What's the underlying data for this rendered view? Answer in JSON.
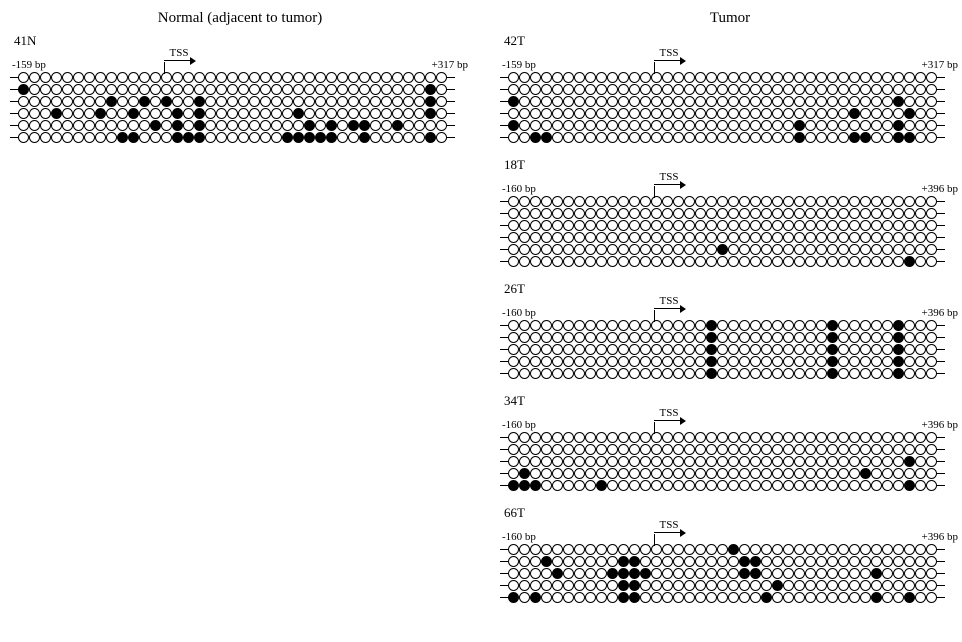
{
  "headers": {
    "left": "Normal (adjacent to tumor)",
    "right": "Tumor"
  },
  "circle_diameter": 11,
  "tail_width": 8,
  "panels": {
    "left": [
      {
        "label": "41N",
        "bp_left": "-159 bp",
        "bp_right": "+317 bp",
        "tss_col": 14,
        "cols": 39,
        "rows": 6,
        "filled": [
          [
            1,
            0
          ],
          [
            1,
            37
          ],
          [
            2,
            8
          ],
          [
            2,
            11
          ],
          [
            2,
            13
          ],
          [
            2,
            16
          ],
          [
            2,
            37
          ],
          [
            3,
            3
          ],
          [
            3,
            7
          ],
          [
            3,
            10
          ],
          [
            3,
            14
          ],
          [
            3,
            16
          ],
          [
            3,
            25
          ],
          [
            3,
            37
          ],
          [
            4,
            12
          ],
          [
            4,
            14
          ],
          [
            4,
            16
          ],
          [
            4,
            26
          ],
          [
            4,
            28
          ],
          [
            4,
            30
          ],
          [
            4,
            31
          ],
          [
            4,
            34
          ],
          [
            5,
            9
          ],
          [
            5,
            10
          ],
          [
            5,
            14
          ],
          [
            5,
            15
          ],
          [
            5,
            16
          ],
          [
            5,
            24
          ],
          [
            5,
            25
          ],
          [
            5,
            26
          ],
          [
            5,
            27
          ],
          [
            5,
            28
          ],
          [
            5,
            31
          ],
          [
            5,
            37
          ]
        ]
      }
    ],
    "right": [
      {
        "label": "42T",
        "bp_left": "-159 bp",
        "bp_right": "+317 bp",
        "tss_col": 14,
        "cols": 39,
        "rows": 6,
        "filled": [
          [
            2,
            0
          ],
          [
            2,
            35
          ],
          [
            3,
            31
          ],
          [
            3,
            36
          ],
          [
            4,
            0
          ],
          [
            4,
            26
          ],
          [
            4,
            35
          ],
          [
            5,
            2
          ],
          [
            5,
            3
          ],
          [
            5,
            26
          ],
          [
            5,
            31
          ],
          [
            5,
            32
          ],
          [
            5,
            35
          ],
          [
            5,
            36
          ]
        ]
      },
      {
        "label": "18T",
        "bp_left": "-160 bp",
        "bp_right": "+396 bp",
        "tss_col": 14,
        "cols": 39,
        "rows": 6,
        "filled": [
          [
            4,
            19
          ],
          [
            5,
            36
          ]
        ]
      },
      {
        "label": "26T",
        "bp_left": "-160 bp",
        "bp_right": "+396 bp",
        "tss_col": 14,
        "cols": 39,
        "rows": 5,
        "filled": [
          [
            0,
            18
          ],
          [
            0,
            29
          ],
          [
            0,
            35
          ],
          [
            1,
            18
          ],
          [
            1,
            29
          ],
          [
            1,
            35
          ],
          [
            2,
            18
          ],
          [
            2,
            29
          ],
          [
            2,
            35
          ],
          [
            3,
            18
          ],
          [
            3,
            29
          ],
          [
            3,
            35
          ],
          [
            4,
            18
          ],
          [
            4,
            29
          ],
          [
            4,
            35
          ]
        ]
      },
      {
        "label": "34T",
        "bp_left": "-160 bp",
        "bp_right": "+396 bp",
        "tss_col": 14,
        "cols": 39,
        "rows": 5,
        "filled": [
          [
            2,
            36
          ],
          [
            3,
            1
          ],
          [
            3,
            32
          ],
          [
            4,
            0
          ],
          [
            4,
            1
          ],
          [
            4,
            2
          ],
          [
            4,
            8
          ],
          [
            4,
            36
          ]
        ]
      },
      {
        "label": "66T",
        "bp_left": "-160 bp",
        "bp_right": "+396 bp",
        "tss_col": 14,
        "cols": 39,
        "rows": 5,
        "filled": [
          [
            0,
            20
          ],
          [
            1,
            3
          ],
          [
            1,
            10
          ],
          [
            1,
            11
          ],
          [
            1,
            21
          ],
          [
            1,
            22
          ],
          [
            2,
            4
          ],
          [
            2,
            9
          ],
          [
            2,
            10
          ],
          [
            2,
            11
          ],
          [
            2,
            12
          ],
          [
            2,
            21
          ],
          [
            2,
            22
          ],
          [
            2,
            33
          ],
          [
            3,
            10
          ],
          [
            3,
            11
          ],
          [
            3,
            24
          ],
          [
            4,
            0
          ],
          [
            4,
            2
          ],
          [
            4,
            10
          ],
          [
            4,
            11
          ],
          [
            4,
            23
          ],
          [
            4,
            33
          ],
          [
            4,
            36
          ]
        ]
      }
    ]
  }
}
